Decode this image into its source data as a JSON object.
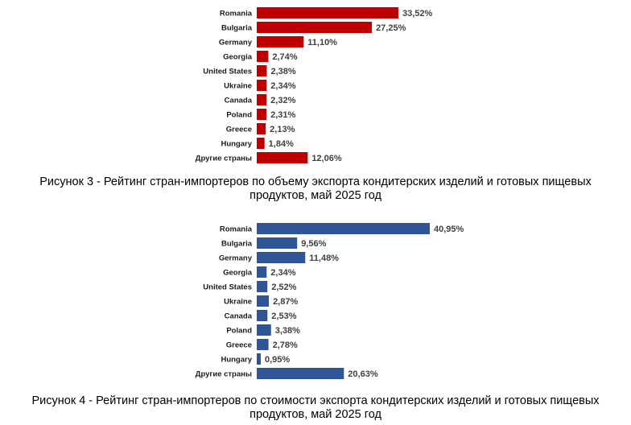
{
  "chart_data": [
    {
      "type": "bar",
      "orientation": "horizontal",
      "color": "#c00000",
      "categories": [
        "Romania",
        "Bulgaria",
        "Germany",
        "Georgia",
        "United States",
        "Ukraine",
        "Canada",
        "Poland",
        "Greece",
        "Hungary",
        "Другие страны"
      ],
      "values": [
        33.52,
        27.25,
        11.1,
        2.74,
        2.38,
        2.34,
        2.32,
        2.31,
        2.13,
        1.84,
        12.06
      ],
      "value_labels": [
        "33,52%",
        "27,25%",
        "11,10%",
        "2,74%",
        "2,38%",
        "2,34%",
        "2,32%",
        "2,31%",
        "2,13%",
        "1,84%",
        "12,06%"
      ],
      "caption_lines": [
        "Рисунок 3 - Рейтинг стран-импортеров по объему экспорта кондитерских изделий и готовых пищевых",
        "продуктов, май 2025 год"
      ]
    },
    {
      "type": "bar",
      "orientation": "horizontal",
      "color": "#2f5597",
      "categories": [
        "Romania",
        "Bulgaria",
        "Germany",
        "Georgia",
        "United States",
        "Ukraine",
        "Canada",
        "Poland",
        "Greece",
        "Hungary",
        "Другие страны"
      ],
      "values": [
        40.95,
        9.56,
        11.48,
        2.34,
        2.52,
        2.87,
        2.53,
        3.38,
        2.78,
        0.95,
        20.63
      ],
      "value_labels": [
        "40,95%",
        "9,56%",
        "11,48%",
        "2,34%",
        "2,52%",
        "2,87%",
        "2,53%",
        "3,38%",
        "2,78%",
        "0,95%",
        "20,63%"
      ],
      "caption_lines": [
        "Рисунок 4 - Рейтинг стран-импортеров по стоимости экспорта кондитерских изделий и готовых пищевых",
        "продуктов, май 2025 год"
      ]
    }
  ]
}
